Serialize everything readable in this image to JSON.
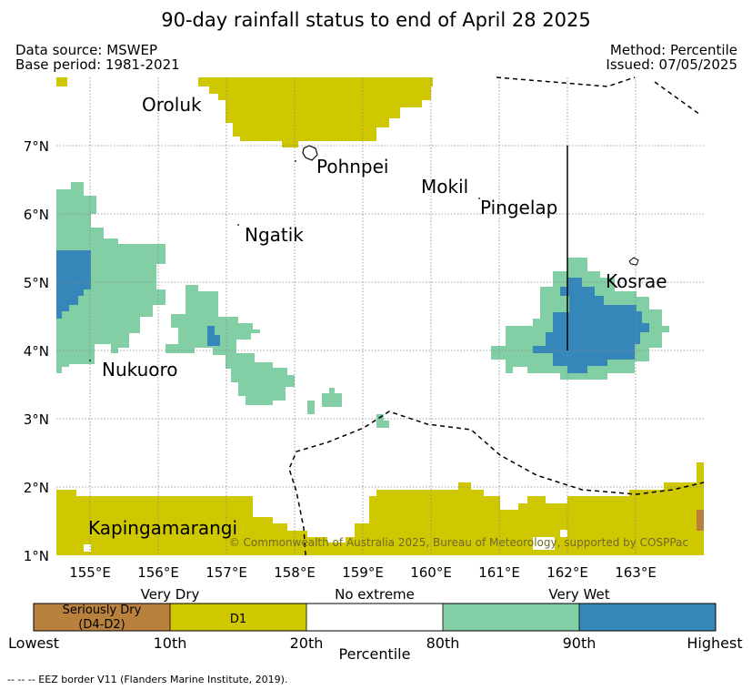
{
  "title": "90-day rainfall status to end of April 28 2025",
  "meta": {
    "data_source": "Data source: MSWEP",
    "base_period": "Base period: 1981-2021",
    "method": "Method: Percentile",
    "issued": "Issued: 07/05/2025"
  },
  "colors": {
    "seriously_dry": "#b8813e",
    "very_dry": "#cfc700",
    "no_extreme": "#ffffff",
    "very_wet": "#83cfa5",
    "highest": "#3587ba",
    "grid": "#888888"
  },
  "axes": {
    "lon_labels": [
      "155°E",
      "156°E",
      "157°E",
      "158°E",
      "159°E",
      "160°E",
      "161°E",
      "162°E",
      "163°E"
    ],
    "lat_labels": [
      "7°N",
      "6°N",
      "5°N",
      "4°N",
      "3°N",
      "2°N",
      "1°N"
    ]
  },
  "places": {
    "oroluk": "Oroluk",
    "pohnpei": "Pohnpei",
    "mokil": "Mokil",
    "pingelap": "Pingelap",
    "ngatik": "Ngatik",
    "kosrae": "Kosrae",
    "nukuoro": "Nukuoro",
    "kapingamarangi": "Kapingamarangi"
  },
  "copyright": "© Commonwealth of Australia 2025, Bureau of Meteorology, supported by COSPPac",
  "legend": {
    "headers": {
      "very_dry": "Very Dry",
      "no_extreme": "No extreme",
      "very_wet": "Very Wet"
    },
    "seriously_dry": "Seriously Dry",
    "seriously_dry_sub": "(D4-D2)",
    "d1": "D1",
    "ticks": {
      "lowest": "Lowest",
      "p10": "10th",
      "p20": "20th",
      "p80": "80th",
      "p90": "90th",
      "highest": "Highest"
    },
    "axis_label": "Percentile"
  },
  "footnote": "--  --  -- EEZ border V11 (Flanders Marine Institute, 2019)."
}
